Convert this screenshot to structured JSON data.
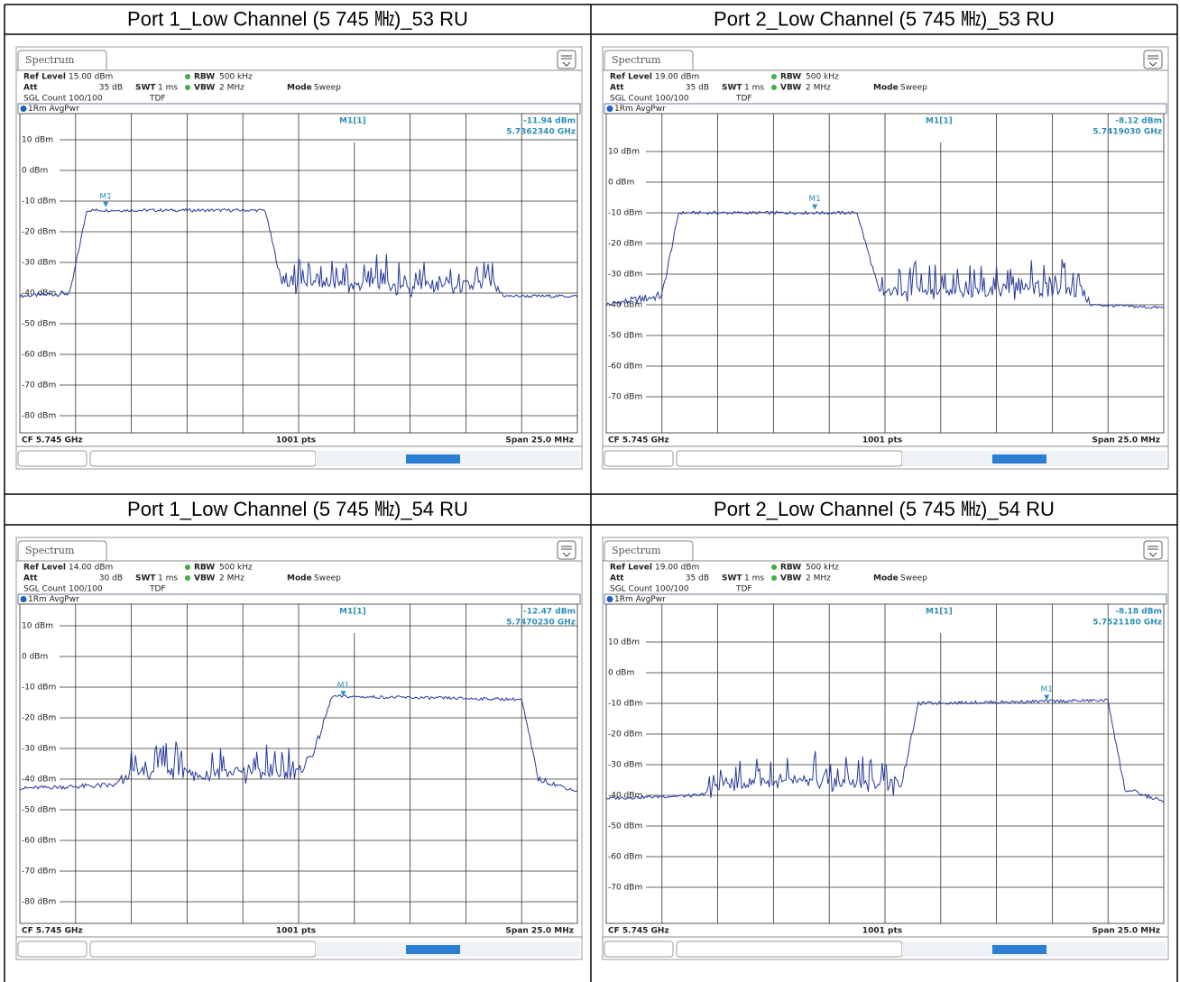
{
  "cells": [
    {
      "title": "Port 1_Low Channel (5 745 ㎒)_53 RU",
      "screen": {
        "tab": "Spectrum",
        "ref_level_label": "Ref Level",
        "ref_level": "15.00 dBm",
        "att_label": "Att",
        "att": "35 dB",
        "swt_label": "SWT",
        "swt": "1 ms",
        "rbw_label": "RBW",
        "rbw": "500 kHz",
        "vbw_label": "VBW",
        "vbw": "2 MHz",
        "mode_label": "Mode",
        "mode": "Sweep",
        "sgl_count": "SGL Count 100/100",
        "tdf": "TDF",
        "trace": "1Rm AvgPwr",
        "marker_name": "M1[1]",
        "marker_level": "-11.94 dBm",
        "marker_freq": "5.7362340 GHz",
        "marker_tag": "M1",
        "ylabels": [
          "10 dBm",
          "0 dBm",
          "-10 dBm",
          "-20 dBm",
          "-30 dBm",
          "-40 dBm",
          "-50 dBm",
          "-60 dBm",
          "-70 dBm",
          "-80 dBm"
        ],
        "cf": "CF 5.745 GHz",
        "pts": "1001 pts",
        "span": "Span 25.0 MHz"
      }
    },
    {
      "title": "Port 2_Low Channel (5 745 ㎒)_53 RU",
      "screen": {
        "tab": "Spectrum",
        "ref_level_label": "Ref Level",
        "ref_level": "19.00 dBm",
        "att_label": "Att",
        "att": "35 dB",
        "swt_label": "SWT",
        "swt": "1 ms",
        "rbw_label": "RBW",
        "rbw": "500 kHz",
        "vbw_label": "VBW",
        "vbw": "2 MHz",
        "mode_label": "Mode",
        "mode": "Sweep",
        "sgl_count": "SGL Count 100/100",
        "tdf": "TDF",
        "trace": "1Rm AvgPwr",
        "marker_name": "M1[1]",
        "marker_level": "-8.12 dBm",
        "marker_freq": "5.7419030 GHz",
        "marker_tag": "M1",
        "ylabels": [
          "10 dBm",
          "0 dBm",
          "-10 dBm",
          "-20 dBm",
          "-30 dBm",
          "-40 dBm",
          "-50 dBm",
          "-60 dBm",
          "-70 dBm"
        ],
        "cf": "CF 5.745 GHz",
        "pts": "1001 pts",
        "span": "Span 25.0 MHz"
      }
    },
    {
      "title": "Port 1_Low Channel (5 745 ㎒)_54 RU",
      "screen": {
        "tab": "Spectrum",
        "ref_level_label": "Ref Level",
        "ref_level": "14.00 dBm",
        "att_label": "Att",
        "att": "30 dB",
        "swt_label": "SWT",
        "swt": "1 ms",
        "rbw_label": "RBW",
        "rbw": "500 kHz",
        "vbw_label": "VBW",
        "vbw": "2 MHz",
        "mode_label": "Mode",
        "mode": "Sweep",
        "sgl_count": "SGL Count 100/100",
        "tdf": "TDF",
        "trace": "1Rm AvgPwr",
        "marker_name": "M1[1]",
        "marker_level": "-12.47 dBm",
        "marker_freq": "5.7470230 GHz",
        "marker_tag": "M1",
        "ylabels": [
          "10 dBm",
          "0 dBm",
          "-10 dBm",
          "-20 dBm",
          "-30 dBm",
          "-40 dBm",
          "-50 dBm",
          "-60 dBm",
          "-70 dBm",
          "-80 dBm"
        ],
        "cf": "CF 5.745 GHz",
        "pts": "1001 pts",
        "span": "Span 25.0 MHz"
      }
    },
    {
      "title": "Port 2_Low Channel (5 745 ㎒)_54 RU",
      "screen": {
        "tab": "Spectrum",
        "ref_level_label": "Ref Level",
        "ref_level": "19.00 dBm",
        "att_label": "Att",
        "att": "35 dB",
        "swt_label": "SWT",
        "swt": "1 ms",
        "rbw_label": "RBW",
        "rbw": "500 kHz",
        "vbw_label": "VBW",
        "vbw": "2 MHz",
        "mode_label": "Mode",
        "mode": "Sweep",
        "sgl_count": "SGL Count 100/100",
        "tdf": "TDF",
        "trace": "1Rm AvgPwr",
        "marker_name": "M1[1]",
        "marker_level": "-8.18 dBm",
        "marker_freq": "5.7521180 GHz",
        "marker_tag": "M1",
        "ylabels": [
          "10 dBm",
          "0 dBm",
          "-10 dBm",
          "-20 dBm",
          "-30 dBm",
          "-40 dBm",
          "-50 dBm",
          "-60 dBm",
          "-70 dBm"
        ],
        "cf": "CF 5.745 GHz",
        "pts": "1001 pts",
        "span": "Span 25.0 MHz"
      }
    }
  ]
}
